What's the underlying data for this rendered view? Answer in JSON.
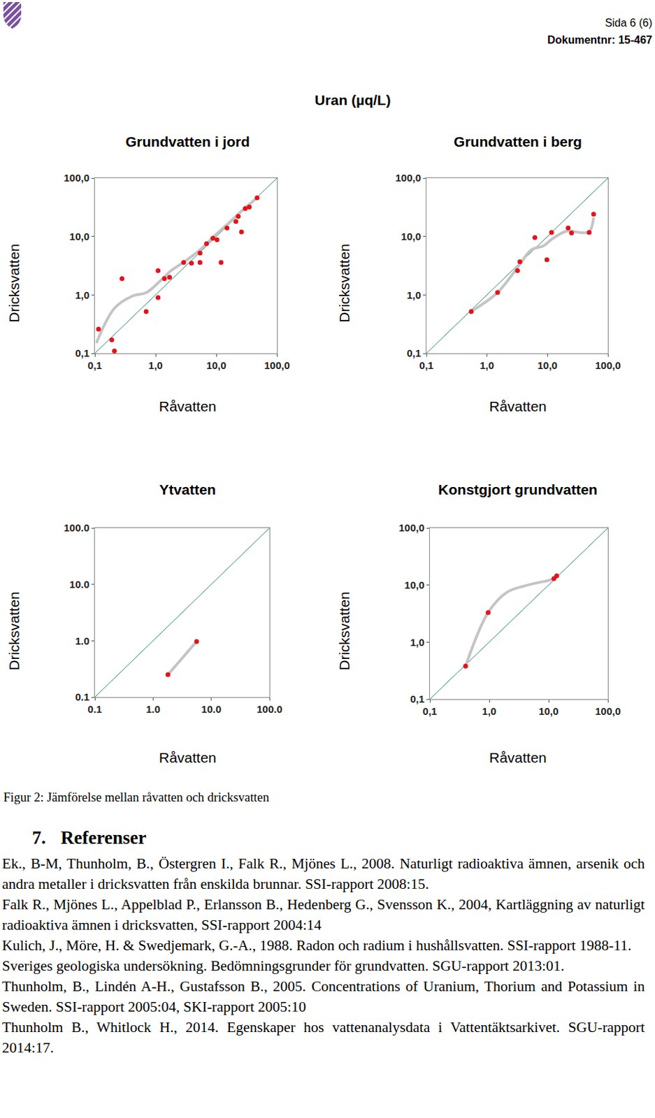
{
  "header": {
    "page": "Sida 6 (6)",
    "document_number": "Dokumentnr: 15-467"
  },
  "figure_title": "Uran (µq/L)",
  "chart_data": [
    {
      "type": "scatter",
      "title": "Grundvatten i jord",
      "xlabel": "Råvatten",
      "ylabel": "Dricksvatten",
      "log": true,
      "grid": false,
      "xlim": [
        0.1,
        100
      ],
      "ylim": [
        0.1,
        100
      ],
      "xticks": [
        {
          "value": 0.1,
          "label": "0,1"
        },
        {
          "value": 1,
          "label": "1,0"
        },
        {
          "value": 10,
          "label": "10,0"
        },
        {
          "value": 100,
          "label": "100,0"
        }
      ],
      "yticks": [
        {
          "value": 0.1,
          "label": "0,1"
        },
        {
          "value": 1,
          "label": "1,0"
        },
        {
          "value": 10,
          "label": "10,0"
        },
        {
          "value": 100,
          "label": "100,0"
        }
      ],
      "series": [
        {
          "type": "line",
          "line_style": "solid",
          "color": "#2e8b7a",
          "x": [
            0.1,
            100
          ],
          "values": [
            0.1,
            100
          ]
        },
        {
          "type": "line",
          "line_style": "smooth",
          "color": "#c4c4c4",
          "x": [
            0.106,
            0.21,
            0.41,
            0.71,
            1.1,
            1.8,
            3.1,
            5.4,
            9.1,
            16,
            27,
            47
          ],
          "values": [
            0.15,
            0.59,
            0.95,
            1.1,
            1.6,
            2.6,
            3.8,
            5.9,
            10,
            17,
            28,
            46
          ]
        },
        {
          "type": "scatter",
          "marker": "circle",
          "color": "#e3131b",
          "x": [
            0.115,
            0.19,
            0.21,
            0.28,
            0.7,
            1.1,
            1.1,
            1.4,
            1.7,
            2.9,
            3.9,
            5.4,
            5.4,
            6.9,
            8.8,
            10.3,
            12,
            15,
            21,
            23,
            26,
            30,
            35,
            47
          ],
          "values": [
            0.26,
            0.17,
            0.11,
            1.9,
            0.52,
            2.6,
            0.9,
            1.9,
            2.0,
            3.6,
            3.5,
            3.6,
            5.2,
            7.5,
            9.3,
            8.8,
            3.6,
            14,
            18,
            22,
            12,
            30,
            32,
            46
          ]
        }
      ]
    },
    {
      "type": "scatter",
      "title": "Grundvatten i berg",
      "xlabel": "Råvatten",
      "ylabel": "Dricksvatten",
      "log": true,
      "grid": false,
      "xlim": [
        0.1,
        100
      ],
      "ylim": [
        0.1,
        100
      ],
      "xticks": [
        {
          "value": 0.1,
          "label": "0,1"
        },
        {
          "value": 1,
          "label": "1,0"
        },
        {
          "value": 10,
          "label": "10,0"
        },
        {
          "value": 100,
          "label": "100,0"
        }
      ],
      "yticks": [
        {
          "value": 0.1,
          "label": "0,1"
        },
        {
          "value": 1,
          "label": "1,0"
        },
        {
          "value": 10,
          "label": "10,0"
        },
        {
          "value": 100,
          "label": "100,0"
        }
      ],
      "series": [
        {
          "type": "line",
          "line_style": "solid",
          "color": "#2e8b7a",
          "x": [
            0.1,
            100
          ],
          "values": [
            0.1,
            100
          ]
        },
        {
          "type": "line",
          "line_style": "smooth",
          "color": "#c4c4c4",
          "x": [
            0.55,
            1.5,
            3.4,
            5.4,
            8.6,
            12,
            21,
            34,
            49,
            58
          ],
          "values": [
            0.52,
            1.1,
            3.2,
            5.9,
            6.9,
            9.1,
            12.4,
            11.7,
            12,
            21
          ]
        },
        {
          "type": "scatter",
          "marker": "circle",
          "color": "#e3131b",
          "x": [
            0.55,
            1.5,
            3.2,
            3.5,
            6.2,
            9.8,
            11.7,
            22,
            25,
            49,
            58
          ],
          "values": [
            0.52,
            1.1,
            2.6,
            3.7,
            9.6,
            4.0,
            11.7,
            14,
            11.5,
            11.7,
            24
          ]
        }
      ]
    },
    {
      "type": "scatter",
      "title": "Ytvatten",
      "xlabel": "Råvatten",
      "ylabel": "Dricksvatten",
      "log": true,
      "grid": false,
      "xlim": [
        0.1,
        100
      ],
      "ylim": [
        0.1,
        100
      ],
      "xticks": [
        0.1,
        {
          "value": 1,
          "label": "1.0"
        },
        {
          "value": 10,
          "label": "10.0"
        },
        {
          "value": 100,
          "label": "100.0"
        }
      ],
      "yticks": [
        0.1,
        {
          "value": 1,
          "label": "1.0"
        },
        {
          "value": 10,
          "label": "10.0"
        },
        {
          "value": 100,
          "label": "100.0"
        }
      ],
      "series": [
        {
          "type": "line",
          "line_style": "solid",
          "color": "#2e8b7a",
          "x": [
            0.1,
            100
          ],
          "values": [
            0.1,
            100
          ]
        },
        {
          "type": "line",
          "line_style": "solid",
          "color": "#c4c4c4",
          "x": [
            1.8,
            5.6
          ],
          "values": [
            0.25,
            0.97
          ]
        },
        {
          "type": "scatter",
          "marker": "circle",
          "color": "#e3131b",
          "x": [
            1.8,
            5.6
          ],
          "values": [
            0.25,
            0.97
          ]
        }
      ]
    },
    {
      "type": "scatter",
      "title": "Konstgjort grundvatten",
      "xlabel": "Råvatten",
      "ylabel": "Dricksvatten",
      "log": true,
      "grid": false,
      "xlim": [
        0.1,
        100
      ],
      "ylim": [
        0.1,
        100
      ],
      "xticks": [
        {
          "value": 0.1,
          "label": "0,1"
        },
        {
          "value": 1,
          "label": "1,0"
        },
        {
          "value": 10,
          "label": "10,0"
        },
        {
          "value": 100,
          "label": "100,0"
        }
      ],
      "yticks": [
        {
          "value": 0.1,
          "label": "0,1"
        },
        {
          "value": 1,
          "label": "1,0"
        },
        {
          "value": 10,
          "label": "10,0"
        },
        {
          "value": 100,
          "label": "100,0"
        }
      ],
      "series": [
        {
          "type": "line",
          "line_style": "solid",
          "color": "#2e8b7a",
          "x": [
            0.1,
            100
          ],
          "values": [
            0.1,
            100
          ]
        },
        {
          "type": "line",
          "line_style": "smooth",
          "color": "#c4c4c4",
          "x": [
            0.4,
            0.96,
            2.0,
            4.5,
            12.3,
            13.7
          ],
          "values": [
            0.38,
            3.3,
            7.5,
            10,
            13,
            14.5
          ]
        },
        {
          "type": "scatter",
          "marker": "circle",
          "color": "#e3131b",
          "x": [
            0.4,
            0.96,
            12.3,
            13.7
          ],
          "values": [
            0.38,
            3.3,
            13,
            14.5
          ]
        }
      ]
    }
  ],
  "caption": "Figur 2: Jämförelse mellan råvatten och dricksvatten",
  "section": {
    "number": "7.",
    "title": "Referenser"
  },
  "references": [
    "Ek., B-M, Thunholm, B., Östergren I., Falk R., Mjönes L., 2008. Naturligt radioaktiva ämnen, arsenik och andra metaller i dricksvatten från enskilda brunnar. SSI-rapport 2008:15.",
    "Falk R., Mjönes L., Appelblad P., Erlansson B., Hedenberg G., Svensson K., 2004, Kartläggning av naturligt radioaktiva ämnen i dricksvatten, SSI-rapport 2004:14",
    "Kulich, J., Möre, H. & Swedjemark, G.-A., 1988. Radon och radium i hushållsvatten. SSI-rapport 1988-11.",
    "Sveriges geologiska undersökning. Bedömningsgrunder för grundvatten. SGU-rapport 2013:01.",
    "Thunholm, B., Lindén A-H., Gustafsson B., 2005. Concentrations of Uranium, Thorium and Potassium in Sweden. SSI-rapport 2005:04, SKI-rapport 2005:10",
    "Thunholm B., Whitlock H., 2014. Egenskaper hos vattenanalysdata i Vattentäktsarkivet. SGU-rapport 2014:17."
  ]
}
